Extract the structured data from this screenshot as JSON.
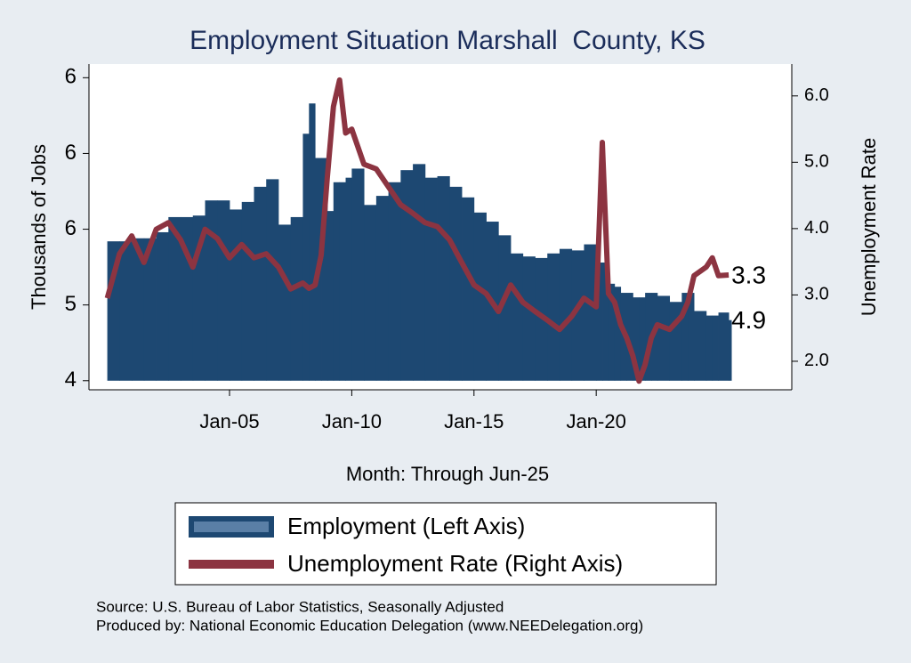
{
  "chart_data": {
    "type": "bar-line",
    "title": "Employment Situation Marshall  County, KS",
    "x_label": "Month: Through Jun-25",
    "y_label": "Thousands of Jobs",
    "y2_label": "Unemployment Rate",
    "x": [
      2000.0,
      2000.5,
      2001.0,
      2001.5,
      2002.0,
      2002.5,
      2003.0,
      2003.5,
      2004.0,
      2004.5,
      2005.0,
      2005.5,
      2006.0,
      2006.5,
      2007.0,
      2007.5,
      2008.0,
      2008.25,
      2008.5,
      2008.75,
      2009.0,
      2009.25,
      2009.5,
      2009.75,
      2010.0,
      2010.5,
      2011.0,
      2011.5,
      2012.0,
      2012.5,
      2013.0,
      2013.5,
      2014.0,
      2014.5,
      2015.0,
      2015.5,
      2016.0,
      2016.5,
      2017.0,
      2017.5,
      2018.0,
      2018.5,
      2019.0,
      2019.5,
      2020.0,
      2020.25,
      2020.5,
      2020.75,
      2021.0,
      2021.25,
      2021.5,
      2021.75,
      2022.0,
      2022.25,
      2022.5,
      2023.0,
      2023.5,
      2023.75,
      2024.0,
      2024.5,
      2024.75,
      2025.0,
      2025.42
    ],
    "series": [
      {
        "name": "Employment (Left Axis)",
        "type": "bar",
        "color": "#1d4872",
        "values": [
          5.42,
          5.42,
          5.44,
          5.44,
          5.48,
          5.58,
          5.58,
          5.59,
          5.69,
          5.69,
          5.63,
          5.68,
          5.78,
          5.83,
          5.53,
          5.58,
          6.13,
          6.33,
          5.97,
          5.97,
          5.62,
          5.81,
          5.81,
          5.84,
          5.9,
          5.66,
          5.72,
          5.81,
          5.89,
          5.93,
          5.84,
          5.85,
          5.78,
          5.71,
          5.61,
          5.55,
          5.46,
          5.34,
          5.32,
          5.31,
          5.34,
          5.37,
          5.36,
          5.4,
          5.28,
          5.28,
          5.14,
          5.12,
          5.08,
          5.08,
          5.05,
          5.05,
          5.08,
          5.08,
          5.06,
          5.02,
          5.08,
          5.08,
          4.96,
          4.93,
          4.93,
          4.95,
          4.9
        ]
      },
      {
        "name": "Unemployment Rate (Right Axis)",
        "type": "line",
        "axis": "y2",
        "color": "#8c3441",
        "values": [
          2.95,
          3.62,
          3.89,
          3.49,
          3.99,
          4.09,
          3.83,
          3.42,
          3.99,
          3.85,
          3.56,
          3.76,
          3.56,
          3.62,
          3.42,
          3.09,
          3.18,
          3.1,
          3.15,
          3.6,
          4.77,
          5.84,
          6.24,
          5.44,
          5.5,
          4.97,
          4.9,
          4.63,
          4.36,
          4.23,
          4.09,
          4.03,
          3.83,
          3.49,
          3.15,
          3.02,
          2.75,
          3.15,
          2.89,
          2.75,
          2.62,
          2.48,
          2.68,
          2.95,
          2.82,
          5.3,
          3.02,
          2.89,
          2.55,
          2.35,
          2.08,
          1.7,
          1.95,
          2.35,
          2.55,
          2.48,
          2.68,
          2.89,
          3.29,
          3.42,
          3.56,
          3.29,
          3.3
        ]
      }
    ],
    "xlim": [
      1999.25,
      2028.0
    ],
    "xticks": [
      {
        "value": 2005,
        "label": "Jan-05"
      },
      {
        "value": 2010,
        "label": "Jan-10"
      },
      {
        "value": 2015,
        "label": "Jan-15"
      },
      {
        "value": 2020,
        "label": "Jan-20"
      }
    ],
    "ylim": [
      4.44,
      6.59
    ],
    "yticks": [
      {
        "value": 4.5,
        "label": "4"
      },
      {
        "value": 5.0,
        "label": "5"
      },
      {
        "value": 5.5,
        "label": "6"
      },
      {
        "value": 6.0,
        "label": "6"
      },
      {
        "value": 6.5,
        "label": "6"
      }
    ],
    "y2lim": [
      1.57,
      6.48
    ],
    "y2ticks": [
      {
        "value": 2.0,
        "label": "2.0"
      },
      {
        "value": 3.0,
        "label": "3.0"
      },
      {
        "value": 4.0,
        "label": "4.0"
      },
      {
        "value": 5.0,
        "label": "5.0"
      },
      {
        "value": 6.0,
        "label": "6.0"
      }
    ],
    "notes": [
      "Source: U.S. Bureau of Labor Statistics, Seasonally Adjusted",
      "Produced by: National Economic Education Delegation (www.NEEDelegation.org)"
    ]
  }
}
